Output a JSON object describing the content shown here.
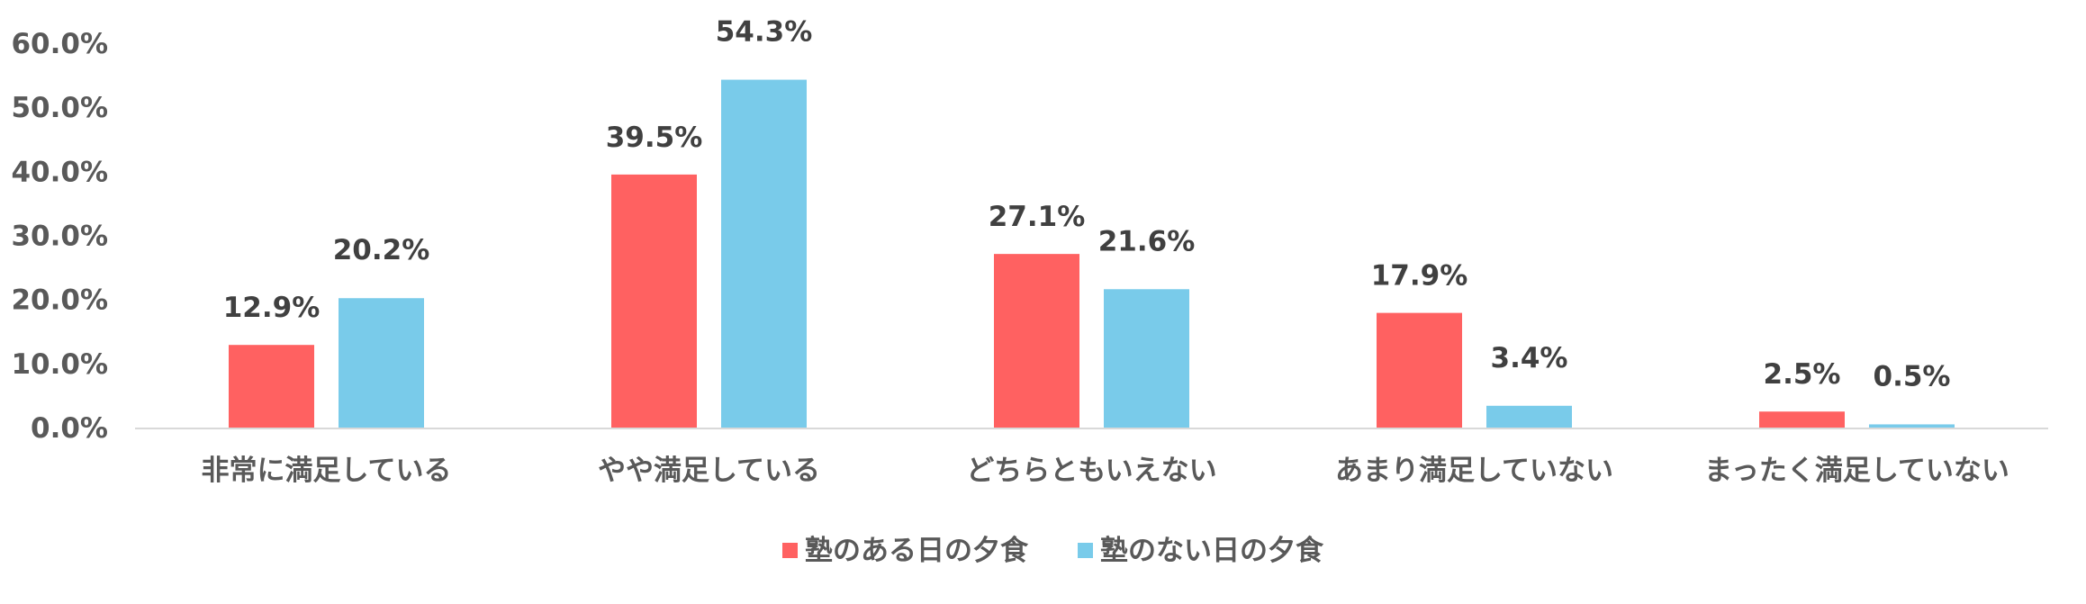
{
  "chart_data": {
    "type": "bar",
    "title": "",
    "xlabel": "",
    "ylabel": "",
    "ylim": [
      0,
      0.6
    ],
    "yticks": [
      0,
      0.1,
      0.2,
      0.3,
      0.4,
      0.5,
      0.6
    ],
    "ytick_labels": [
      "0.0%",
      "10.0%",
      "20.0%",
      "30.0%",
      "40.0%",
      "50.0%",
      "60.0%"
    ],
    "grid": false,
    "legend_position": "bottom",
    "categories": [
      "非常に満足している",
      "やや満足している",
      "どちらともいえない",
      "あまり満足していない",
      "まったく満足していない"
    ],
    "series": [
      {
        "name": "塾のある日の夕食",
        "color": "#ff6161",
        "values": [
          0.129,
          0.395,
          0.271,
          0.179,
          0.025
        ],
        "labels": [
          "12.9%",
          "39.5%",
          "27.1%",
          "17.9%",
          "2.5%"
        ]
      },
      {
        "name": "塾のない日の夕食",
        "color": "#79cbea",
        "values": [
          0.202,
          0.543,
          0.216,
          0.034,
          0.005
        ],
        "labels": [
          "20.2%",
          "54.3%",
          "21.6%",
          "3.4%",
          "0.5%"
        ]
      }
    ],
    "axis_color": "#d9d9d9"
  }
}
